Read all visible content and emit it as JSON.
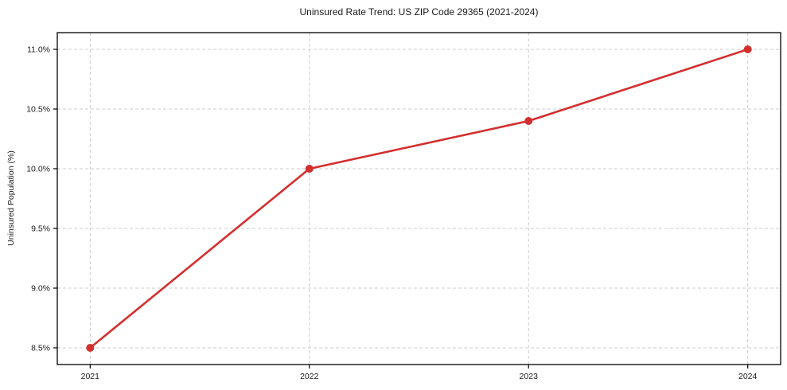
{
  "chart_data": {
    "type": "line",
    "title": "Uninsured Rate Trend: US ZIP Code 29365 (2021-2024)",
    "xlabel": "",
    "ylabel": "Uninsured Population (%)",
    "x": [
      2021,
      2022,
      2023,
      2024
    ],
    "x_tick_labels": [
      "2021",
      "2022",
      "2023",
      "2024"
    ],
    "values": [
      8.5,
      10.0,
      10.4,
      11.0
    ],
    "y_ticks": [
      8.5,
      9.0,
      9.5,
      10.0,
      10.5,
      11.0
    ],
    "y_tick_labels": [
      "8.5%",
      "9.0%",
      "9.5%",
      "10.0%",
      "10.5%",
      "11.0%"
    ],
    "xlim": [
      2020.85,
      2024.15
    ],
    "ylim": [
      8.36,
      11.14
    ],
    "grid": true,
    "grid_style": "dashed",
    "legend_position": "none",
    "marker": "circle",
    "colors": {
      "line": "#d32f2f",
      "grid": "#cccccc",
      "spine": "#000000",
      "text": "#1a1a1a",
      "background": "#ffffff"
    }
  }
}
